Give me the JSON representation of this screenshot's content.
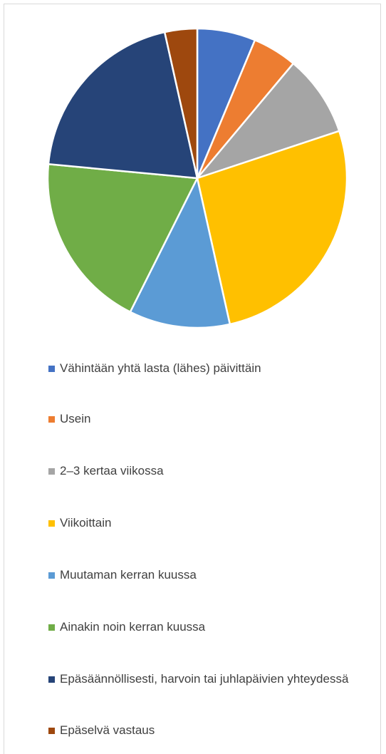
{
  "chart_data": {
    "type": "pie",
    "categories": [
      "Vähintään yhtä lasta (lähes) päivittäin",
      "Usein",
      "2–3 kertaa viikossa",
      "Viikoittain",
      "Muutaman kerran kuussa",
      "Ainakin noin kerran kuussa",
      "Epäsäännöllisesti, harvoin tai juhlapäivien yhteydessä",
      "Epäselvä vastaus"
    ],
    "values": [
      6.3,
      4.8,
      8.8,
      26.6,
      10.9,
      19.1,
      20.0,
      3.5
    ],
    "colors": [
      "#4472c4",
      "#ed7d31",
      "#a5a5a5",
      "#ffc000",
      "#5b9bd5",
      "#70ad47",
      "#264478",
      "#9e480e"
    ],
    "legend": "bottom"
  }
}
